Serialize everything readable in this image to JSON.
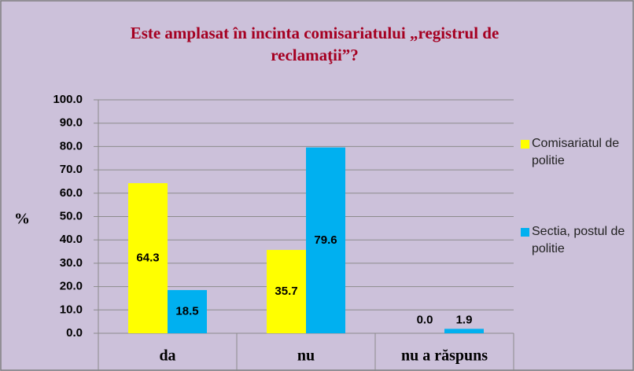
{
  "chart_data": {
    "type": "bar",
    "title": "Este amplasat în incinta comisariatului „registrul de reclamaţii”?",
    "y_label": "%",
    "categories": [
      "da",
      "nu",
      "nu a răspuns"
    ],
    "series": [
      {
        "name": "Comisariatul de politie",
        "color": "#ffff00",
        "values": [
          64.3,
          35.7,
          0
        ],
        "value_labels": [
          "64.3",
          "35.7",
          "0.0"
        ]
      },
      {
        "name": "Sectia, postul de politie",
        "color": "#00b0f0",
        "values": [
          18.5,
          79.6,
          1.9
        ],
        "value_labels": [
          "18.5",
          "79.6",
          "1.9"
        ]
      }
    ],
    "ylim": [
      0,
      100
    ],
    "yticks": [
      {
        "value": 0,
        "label": "0.0"
      },
      {
        "value": 10,
        "label": "10.0"
      },
      {
        "value": 20,
        "label": "20.0"
      },
      {
        "value": 30,
        "label": "30.0"
      },
      {
        "value": 40,
        "label": "40.0"
      },
      {
        "value": 50,
        "label": "50.0"
      },
      {
        "value": 60,
        "label": "60.0"
      },
      {
        "value": 70,
        "label": "70.0"
      },
      {
        "value": 80,
        "label": "80.0"
      },
      {
        "value": 90,
        "label": "90.0"
      },
      {
        "value": 100,
        "label": "100.0"
      }
    ],
    "grid": true,
    "legend": "right"
  }
}
